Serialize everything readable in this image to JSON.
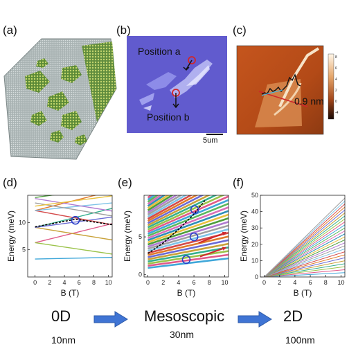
{
  "panels": {
    "a": {
      "label": "(a)"
    },
    "b": {
      "label": "(b)",
      "pos_a": "Position a",
      "pos_b": "Position b",
      "scale": "5um"
    },
    "c": {
      "label": "(c)",
      "height": "0.9 nm"
    },
    "d": {
      "label": "(d)"
    },
    "e": {
      "label": "(e)"
    },
    "f": {
      "label": "(f)"
    }
  },
  "flow": {
    "stage1": "0D",
    "stage1_size": "10nm",
    "stage2": "Mesoscopic",
    "stage2_size": "30nm",
    "stage3": "2D",
    "stage3_size": "100nm"
  },
  "colors": {
    "arrow": "#3f74d4",
    "circle": "#2a3fc9",
    "red": "#d0262b"
  },
  "chart_data": [
    {
      "panel": "d",
      "type": "line",
      "xlabel": "B (T)",
      "ylabel": "Energy (meV)",
      "xlim": [
        -1,
        10.5
      ],
      "ylim": [
        0,
        15
      ],
      "xticks": [
        0,
        2,
        4,
        6,
        8,
        10
      ],
      "yticks": [
        5,
        10
      ],
      "series": [
        {
          "values": [
            [
              0,
              3.3
            ],
            [
              10.5,
              3.6
            ]
          ],
          "color": "#3fa7d9"
        },
        {
          "values": [
            [
              0,
              6.3
            ],
            [
              10.5,
              9.8
            ]
          ],
          "color": "#e05a8a"
        },
        {
          "values": [
            [
              0,
              6.3
            ],
            [
              10.5,
              4.2
            ]
          ],
          "color": "#9bc34a"
        },
        {
          "values": [
            [
              0,
              9.1
            ],
            [
              10.5,
              12.6
            ]
          ],
          "color": "#35b08f"
        },
        {
          "values": [
            [
              0,
              9.1
            ],
            [
              10.5,
              6.8
            ]
          ],
          "color": "#c9a23a"
        },
        {
          "values": [
            [
              0,
              9.1
            ],
            [
              10.5,
              11.0
            ]
          ],
          "color": "#6b6bd6"
        },
        {
          "values": [
            [
              0,
              12.2
            ],
            [
              10.5,
              15.8
            ]
          ],
          "color": "#e07b2c"
        },
        {
          "values": [
            [
              0,
              12.2
            ],
            [
              10.5,
              9.6
            ]
          ],
          "color": "#d44a4a"
        },
        {
          "values": [
            [
              0,
              12.2
            ],
            [
              10.5,
              13.6
            ]
          ],
          "color": "#7fc4e8"
        },
        {
          "values": [
            [
              0,
              13.6
            ],
            [
              10.5,
              11.2
            ]
          ],
          "color": "#a0a0a0"
        },
        {
          "values": [
            [
              0,
              14.4
            ],
            [
              10.5,
              12.1
            ]
          ],
          "color": "#b07bd1"
        },
        {
          "values": [
            [
              0,
              14.6
            ],
            [
              10.5,
              16.5
            ]
          ],
          "color": "#4d9e3c"
        },
        {
          "values": [
            [
              0,
              13.0
            ],
            [
              10.5,
              14.9
            ]
          ],
          "color": "#e8c13e"
        },
        {
          "values": [
            [
              0,
              9.2
            ],
            [
              5.5,
              10.6
            ],
            [
              10.5,
              9.6
            ]
          ],
          "color": "#000000",
          "dashed": true
        }
      ],
      "circles": [
        [
          5.5,
          10.4
        ]
      ]
    },
    {
      "panel": "e",
      "type": "line",
      "xlabel": "B (T)",
      "ylabel": "Energy (meV)",
      "xlim": [
        -0.5,
        10.5
      ],
      "ylim": [
        -0.3,
        10.5
      ],
      "xticks": [
        0,
        2,
        4,
        6,
        8,
        10
      ],
      "yticks": [
        0,
        5
      ],
      "fan": {
        "count": 34,
        "e0": [
          0.9,
          10.2
        ],
        "slope": [
          0.12,
          0.75
        ]
      },
      "series": [
        {
          "values": [
            [
              0,
              2.8
            ],
            [
              2,
              4.2
            ],
            [
              4,
              6.0
            ],
            [
              6,
              8.0
            ],
            [
              7.5,
              9.9
            ]
          ],
          "color": "#000000",
          "dashed": true
        }
      ],
      "circles": [
        [
          6.1,
          8.6
        ],
        [
          6.0,
          5.0
        ],
        [
          5.0,
          2.0
        ]
      ],
      "arrows": [
        [
          [
            6.6,
            4.2
          ],
          [
            10.2,
            5.6
          ]
        ],
        [
          [
            6.8,
            2.4
          ],
          [
            10.2,
            3.6
          ]
        ]
      ]
    },
    {
      "panel": "f",
      "type": "line",
      "xlabel": "B (T)",
      "ylabel": "Energy (meV)",
      "xlim": [
        -0.5,
        10.5
      ],
      "ylim": [
        0,
        50
      ],
      "xticks": [
        0,
        2,
        4,
        6,
        8,
        10
      ],
      "yticks": [
        0,
        10,
        20,
        30,
        40,
        50
      ],
      "fan": {
        "count": 26,
        "e0": [
          0,
          0
        ],
        "slope": [
          0.25,
          4.6
        ]
      }
    }
  ]
}
